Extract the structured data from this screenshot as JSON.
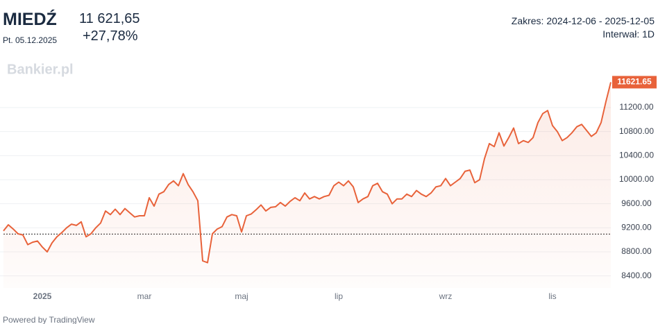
{
  "header": {
    "title": "MIEDŹ",
    "date": "Pt. 05.12.2025",
    "price": "11 621,65",
    "change": "+27,78%",
    "range": "Zakres: 2024-12-06 - 2025-12-05",
    "interval": "Interwał: 1D"
  },
  "watermark": "Bankier.pl",
  "footer": "Powered by TradingView",
  "chart_data": {
    "type": "line",
    "color": "#e8623a",
    "grid": true,
    "baseline": 9095,
    "categories": [
      null,
      null,
      null,
      null,
      null,
      null,
      null,
      null,
      "2025",
      null,
      null,
      null,
      null,
      null,
      null,
      null,
      null,
      null,
      null,
      null,
      null,
      null,
      null,
      null,
      null,
      null,
      null,
      null,
      null,
      "mar",
      null,
      null,
      null,
      null,
      null,
      null,
      null,
      null,
      null,
      null,
      null,
      null,
      null,
      null,
      null,
      null,
      null,
      null,
      null,
      "maj",
      null,
      null,
      null,
      null,
      null,
      null,
      null,
      null,
      null,
      null,
      null,
      null,
      null,
      null,
      null,
      null,
      null,
      null,
      null,
      "lip",
      null,
      null,
      null,
      null,
      null,
      null,
      null,
      null,
      null,
      null,
      null,
      null,
      null,
      null,
      null,
      null,
      null,
      null,
      null,
      null,
      null,
      "wrz",
      null,
      null,
      null,
      null,
      null,
      null,
      null,
      null,
      null,
      null,
      null,
      null,
      null,
      null,
      null,
      null,
      null,
      null,
      null,
      null,
      null,
      "lis",
      null,
      null,
      null,
      null,
      null,
      null,
      null,
      null,
      null,
      null,
      null,
      null
    ],
    "values": [
      9150,
      9250,
      9180,
      9100,
      9080,
      8920,
      8960,
      8980,
      8880,
      8800,
      8950,
      9050,
      9120,
      9200,
      9260,
      9240,
      9300,
      9050,
      9100,
      9200,
      9280,
      9480,
      9420,
      9510,
      9420,
      9520,
      9450,
      9380,
      9400,
      9400,
      9700,
      9560,
      9760,
      9800,
      9920,
      9980,
      9900,
      10100,
      9920,
      9800,
      9650,
      8650,
      8620,
      9100,
      9180,
      9220,
      9380,
      9420,
      9400,
      9130,
      9400,
      9430,
      9500,
      9580,
      9480,
      9540,
      9550,
      9620,
      9560,
      9640,
      9700,
      9650,
      9780,
      9680,
      9720,
      9680,
      9720,
      9740,
      9900,
      9960,
      9900,
      9980,
      9880,
      9620,
      9680,
      9720,
      9900,
      9940,
      9800,
      9760,
      9600,
      9680,
      9680,
      9760,
      9720,
      9820,
      9760,
      9720,
      9780,
      9880,
      9900,
      10020,
      9900,
      9960,
      10020,
      10140,
      10160,
      9950,
      10000,
      10350,
      10600,
      10550,
      10780,
      10560,
      10700,
      10860,
      10600,
      10650,
      10620,
      10700,
      10950,
      11100,
      11150,
      10900,
      10800,
      10650,
      10700,
      10780,
      10880,
      10920,
      10820,
      10720,
      10780,
      10950,
      11300,
      11621.65
    ],
    "value_labels": [
      null,
      null,
      null,
      null,
      null,
      null,
      null,
      null,
      null,
      null,
      null,
      null,
      null,
      null,
      null,
      null,
      null,
      null,
      null,
      null,
      null,
      null,
      null,
      null,
      null,
      null,
      null,
      null,
      null,
      null,
      null,
      null,
      null,
      null,
      null,
      null,
      null,
      null,
      null,
      null,
      null,
      null,
      null,
      null,
      null,
      null,
      null,
      null,
      null,
      null,
      null,
      null,
      null,
      null,
      null,
      null,
      null,
      null,
      null,
      null,
      null,
      null,
      null,
      null,
      null,
      null,
      null,
      null,
      null,
      null,
      null,
      null,
      null,
      null,
      null,
      null,
      null,
      null,
      null,
      null,
      null,
      null,
      null,
      null,
      null,
      null,
      null,
      null,
      null,
      null,
      null,
      null,
      null,
      null,
      null,
      null,
      null,
      null,
      null,
      null,
      null,
      null,
      null,
      null,
      null,
      null,
      null,
      null,
      null,
      null,
      null,
      null,
      null,
      null,
      null,
      null,
      null,
      null,
      null,
      null,
      null,
      null,
      null,
      null,
      null,
      "11621.65"
    ],
    "ylim": [
      8200,
      11800
    ],
    "yticks": [
      {
        "value": 8400,
        "label": "8400.00"
      },
      {
        "value": 8800,
        "label": "8800.00"
      },
      {
        "value": 9200,
        "label": "9200.00"
      },
      {
        "value": 9600,
        "label": "9600.00"
      },
      {
        "value": 10000,
        "label": "10000.00"
      },
      {
        "value": 10400,
        "label": "10400.00"
      },
      {
        "value": 10800,
        "label": "10800.00"
      },
      {
        "value": 11200,
        "label": "11200.00"
      }
    ]
  }
}
